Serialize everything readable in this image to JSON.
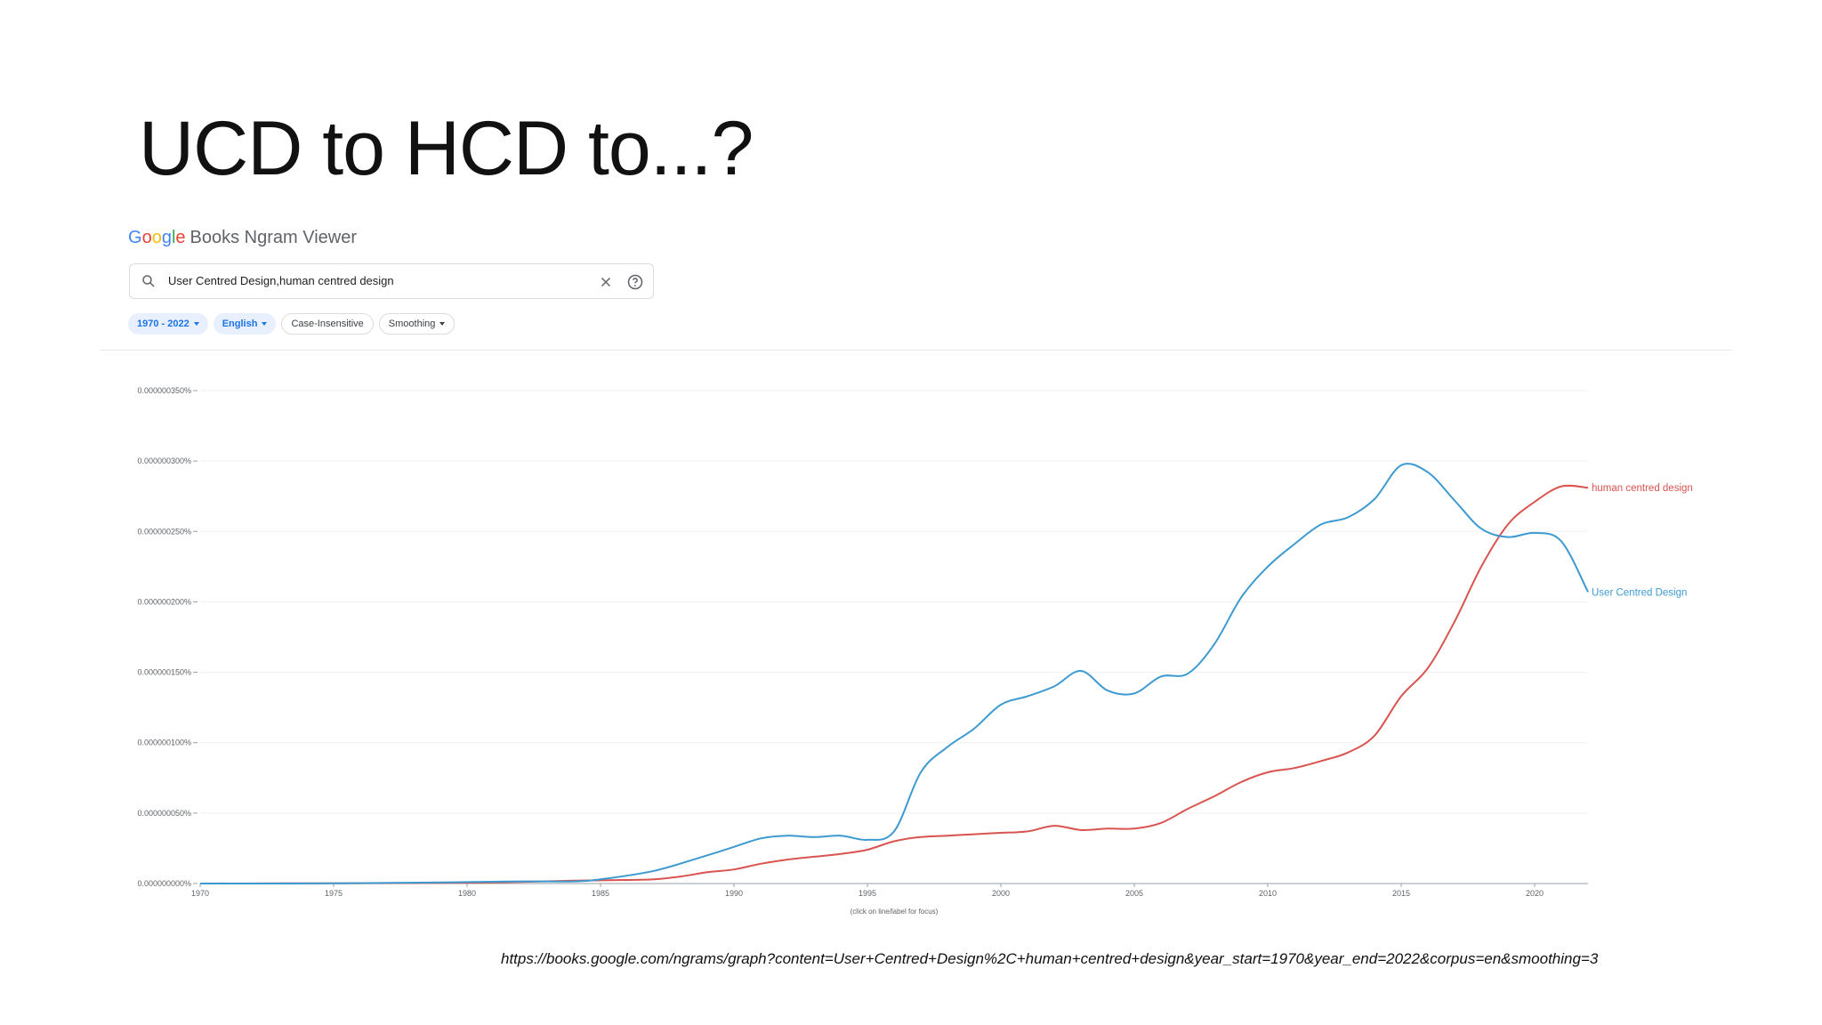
{
  "slide": {
    "title": "UCD to HCD to...?"
  },
  "app": {
    "brand": "Google",
    "brand_colors": [
      "#4285f4",
      "#ea4335",
      "#fbbc05",
      "#4285f4",
      "#34a853",
      "#ea4335"
    ],
    "name": "Books Ngram Viewer"
  },
  "search": {
    "query": "User Centred Design,human centred design",
    "icons": [
      "search-icon",
      "close-icon",
      "help-icon"
    ]
  },
  "filters": {
    "year_range": "1970 - 2022",
    "corpus": "English",
    "case": "Case-Insensitive",
    "smoothing": "Smoothing"
  },
  "chart_data": {
    "type": "line",
    "xlim": [
      1970,
      2022
    ],
    "ylim": [
      0,
      3.5e-09
    ],
    "x_ticks": [
      1970,
      1975,
      1980,
      1985,
      1990,
      1995,
      2000,
      2005,
      2010,
      2015,
      2020
    ],
    "y_ticks": [
      0,
      5e-10,
      1e-09,
      1.5e-09,
      2e-09,
      2.5e-09,
      3e-09,
      3.5e-09
    ],
    "y_tick_labels": [
      "0.000000000%",
      "0.000000050%",
      "0.000000100%",
      "0.000000150%",
      "0.000000200%",
      "0.000000250%",
      "0.000000300%",
      "0.000000350%"
    ],
    "xlabel": "(click on line/label for focus)",
    "grid": true,
    "series": [
      {
        "name": "User Centred Design",
        "color": "#3d9ad1",
        "x": [
          1970,
          1975,
          1980,
          1982,
          1984,
          1985,
          1987,
          1989,
          1990,
          1991,
          1992,
          1993,
          1994,
          1995,
          1996,
          1997,
          1998,
          1999,
          2000,
          2001,
          2002,
          2003,
          2004,
          2005,
          2006,
          2007,
          2008,
          2009,
          2010,
          2011,
          2012,
          2013,
          2014,
          2015,
          2016,
          2017,
          2018,
          2019,
          2020,
          2021,
          2022
        ],
        "y": [
          0,
          1e-12,
          1e-11,
          1.5e-11,
          1.5e-11,
          3e-11,
          9e-11,
          2e-10,
          2.6e-10,
          3.2e-10,
          3.4e-10,
          3.3e-10,
          3.4e-10,
          3.1e-10,
          3.7e-10,
          7.9e-10,
          9.7e-10,
          1.1e-09,
          1.27e-09,
          1.33e-09,
          1.4e-09,
          1.51e-09,
          1.37e-09,
          1.35e-09,
          1.47e-09,
          1.49e-09,
          1.7e-09,
          2.03e-09,
          2.25e-09,
          2.41e-09,
          2.55e-09,
          2.6e-09,
          2.73e-09,
          2.97e-09,
          2.92e-09,
          2.72e-09,
          2.52e-09,
          2.46e-09,
          2.49e-09,
          2.43e-09,
          2.07e-09
        ]
      },
      {
        "name": "human centred design",
        "color": "#d9534f",
        "x": [
          1970,
          1975,
          1980,
          1984,
          1986,
          1987,
          1988,
          1989,
          1990,
          1991,
          1992,
          1993,
          1994,
          1995,
          1996,
          1997,
          1998,
          1999,
          2000,
          2001,
          2002,
          2003,
          2004,
          2005,
          2006,
          2007,
          2008,
          2009,
          2010,
          2011,
          2012,
          2013,
          2014,
          2015,
          2016,
          2017,
          2018,
          2019,
          2020,
          2021,
          2022
        ],
        "y": [
          0,
          2e-12,
          5e-12,
          2e-11,
          2.5e-11,
          3e-11,
          5e-11,
          8e-11,
          1e-10,
          1.4e-10,
          1.7e-10,
          1.9e-10,
          2.1e-10,
          2.4e-10,
          3e-10,
          3.3e-10,
          3.4e-10,
          3.5e-10,
          3.6e-10,
          3.7e-10,
          4.1e-10,
          3.8e-10,
          3.9e-10,
          3.9e-10,
          4.3e-10,
          5.3e-10,
          6.2e-10,
          7.2e-10,
          7.9e-10,
          8.2e-10,
          8.7e-10,
          9.3e-10,
          1.05e-09,
          1.33e-09,
          1.53e-09,
          1.86e-09,
          2.25e-09,
          2.55e-09,
          2.71e-09,
          2.82e-09,
          2.81e-09
        ]
      }
    ]
  },
  "footer": {
    "source_url": "https://books.google.com/ngrams/graph?content=User+Centred+Design%2C+human+centred+design&year_start=1970&year_end=2022&corpus=en&smoothing=3"
  }
}
